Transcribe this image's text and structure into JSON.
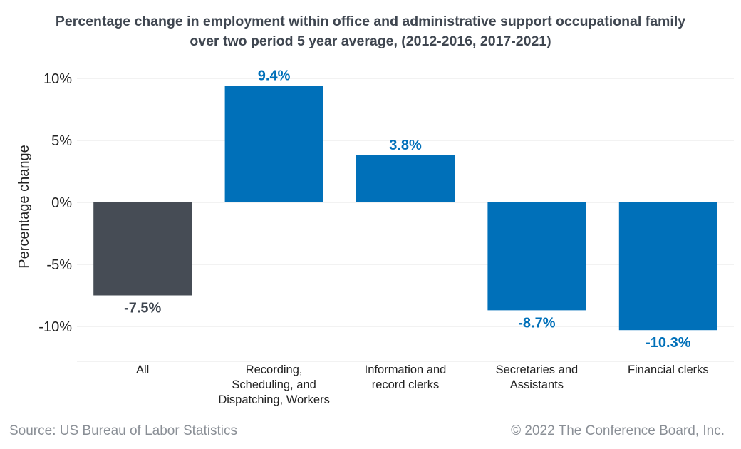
{
  "title_lines": [
    "Percentage change in employment within office and administrative support occupational family",
    "over two period 5 year average, (2012-2016, 2017-2021)"
  ],
  "footer": {
    "source": "Source: US Bureau of Labor Statistics",
    "copyright": "© 2022 The Conference Board, Inc."
  },
  "colors": {
    "highlight_bar": "#464c55",
    "bar": "#0070b9",
    "highlight_label": "#3f4650",
    "label": "#0070b9",
    "grid": "#e6e6e6"
  },
  "chart_data": {
    "type": "bar",
    "title": "Percentage change in employment within office and administrative support occupational family over two period 5 year average, (2012-2016, 2017-2021)",
    "xlabel": "",
    "ylabel": "Percentage change",
    "ylim": [
      -12.5,
      10
    ],
    "yticks": [
      10,
      5,
      0,
      -5,
      -10
    ],
    "ytick_labels": [
      "10%",
      "5%",
      "0%",
      "-5%",
      "-10%"
    ],
    "grid": true,
    "categories": [
      [
        "All"
      ],
      [
        "Recording,",
        "Scheduling, and",
        "Dispatching, Workers"
      ],
      [
        "Information and",
        "record clerks"
      ],
      [
        "Secretaries and",
        "Assistants"
      ],
      [
        "Financial clerks"
      ]
    ],
    "values": [
      -7.5,
      9.4,
      3.8,
      -8.7,
      -10.3
    ],
    "value_labels": [
      "-7.5%",
      "9.4%",
      "3.8%",
      "-8.7%",
      "-10.3%"
    ],
    "highlight": [
      true,
      false,
      false,
      false,
      false
    ]
  }
}
